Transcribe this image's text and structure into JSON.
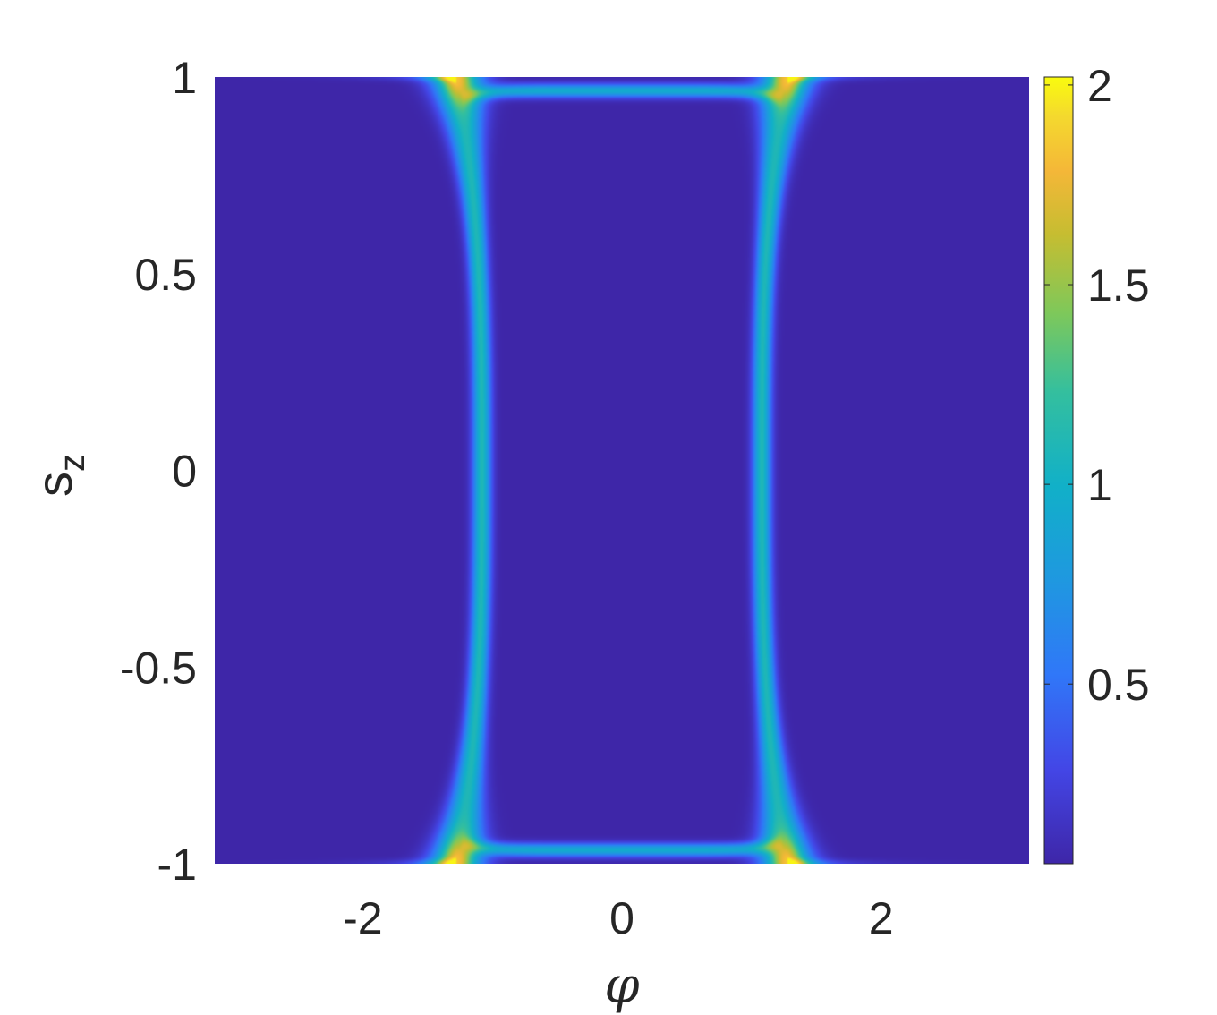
{
  "chart_data": {
    "type": "heatmap",
    "title": "",
    "xlabel": "φ",
    "ylabel_main": "s",
    "ylabel_sub": "z",
    "xlim": [
      -3.1416,
      3.1416
    ],
    "ylim": [
      -1,
      1
    ],
    "xticks": [
      -2,
      0,
      2
    ],
    "xtick_labels": [
      "-2",
      "0",
      "2"
    ],
    "yticks": [
      -1,
      -0.5,
      0,
      0.5,
      1
    ],
    "ytick_labels": [
      "-1",
      "-0.5",
      "0",
      "0.5",
      "1"
    ],
    "colorbar": {
      "colormap": "parula",
      "clim": [
        0.05,
        2.02
      ],
      "ticks": [
        0.5,
        1,
        1.5,
        2
      ],
      "tick_labels": [
        "0.5",
        "1",
        "1.5",
        "2"
      ],
      "placement": "right"
    },
    "background_value": 0.05,
    "ridges": [
      {
        "name": "left",
        "phi_at_center": -1.08,
        "phi_at_edge": -1.28
      },
      {
        "name": "right",
        "phi_at_center": 1.08,
        "phi_at_edge": 1.28
      }
    ],
    "peak_value": 2.0,
    "grid": false
  }
}
